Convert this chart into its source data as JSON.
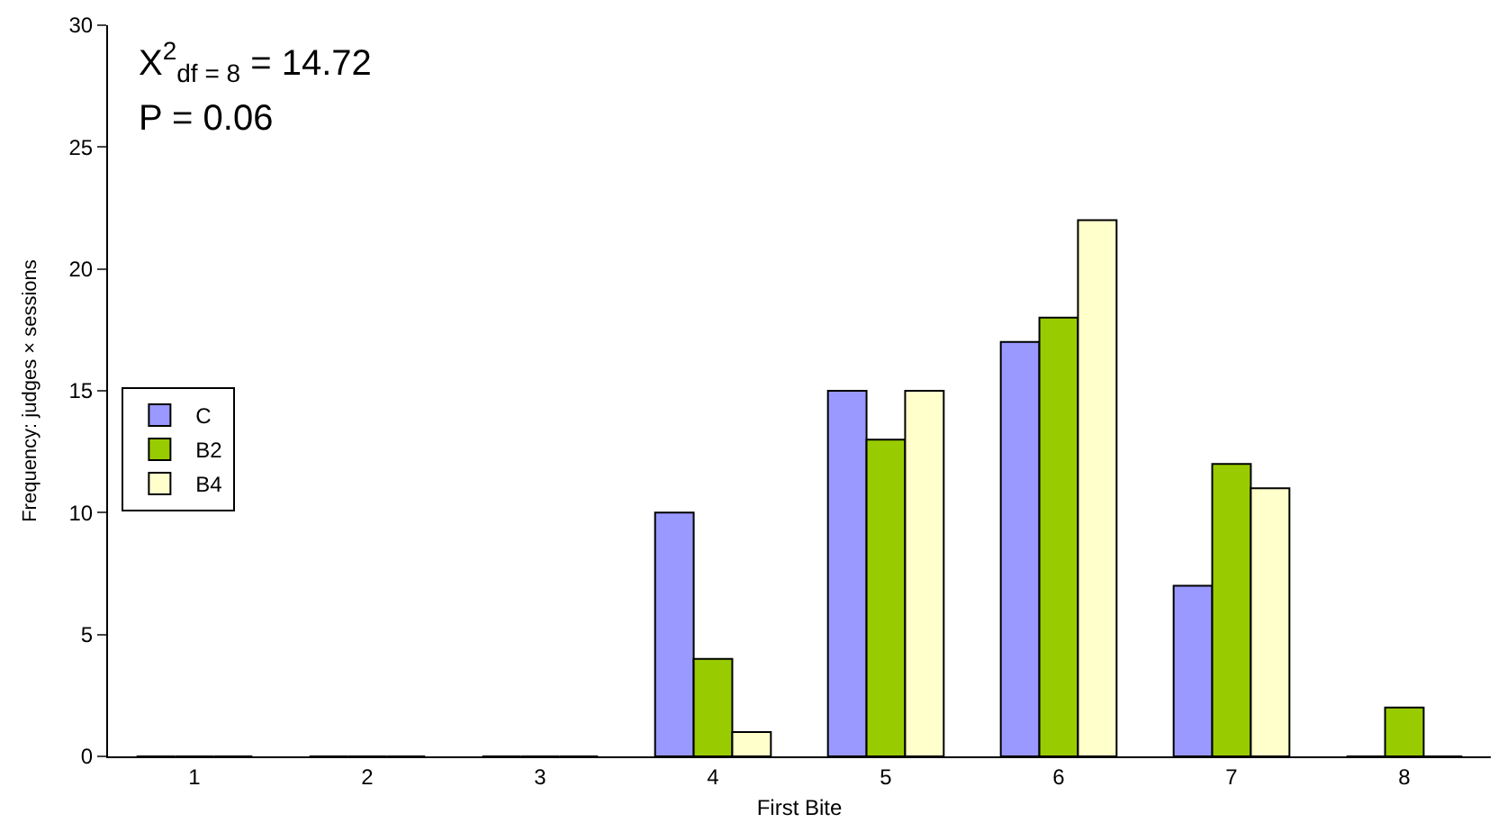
{
  "chart_data": {
    "type": "bar",
    "xlabel": "First Bite",
    "ylabel": "Frequency: judges × sessions",
    "categories": [
      "1",
      "2",
      "3",
      "4",
      "5",
      "6",
      "7",
      "8"
    ],
    "series": [
      {
        "name": "C",
        "color": "#9999ff",
        "values": [
          0,
          0,
          0,
          10,
          15,
          17,
          7,
          0
        ]
      },
      {
        "name": "B2",
        "color": "#99cc00",
        "values": [
          0,
          0,
          0,
          4,
          13,
          18,
          12,
          2
        ]
      },
      {
        "name": "B4",
        "color": "#ffffcc",
        "values": [
          0,
          0,
          0,
          1,
          15,
          22,
          11,
          0
        ]
      }
    ],
    "ylim": [
      0,
      30
    ],
    "yticks": [
      0,
      5,
      10,
      15,
      20,
      25,
      30
    ],
    "legend": "left",
    "annotations": [
      "X$^{2}$$_{df = 8}$ = 14.72",
      "P = 0.06"
    ]
  }
}
